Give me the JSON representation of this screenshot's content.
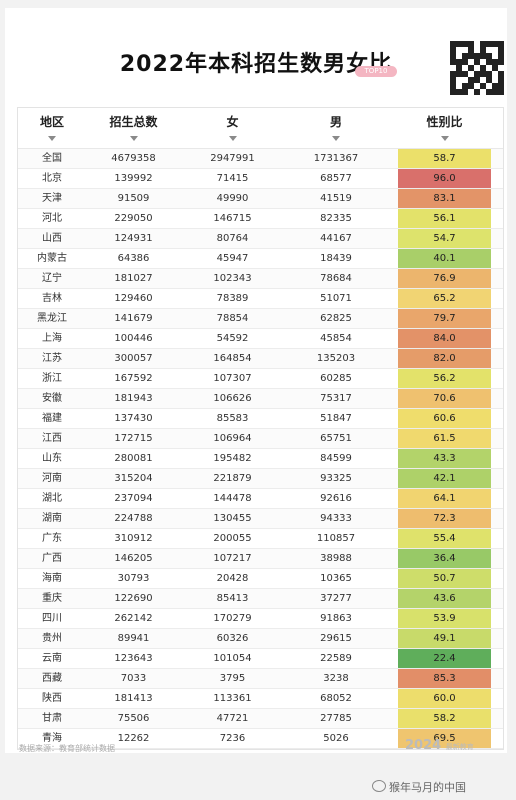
{
  "title": "2022年本科招生数男女比",
  "title_tag": "TOP10",
  "columns": [
    "地区",
    "招生总数",
    "女",
    "男",
    "性别比"
  ],
  "rows": [
    {
      "region": "全国",
      "total": "4679358",
      "female": "2947991",
      "male": "1731367",
      "ratio": "58.7",
      "color": "#ebe06a"
    },
    {
      "region": "北京",
      "total": "139992",
      "female": "71415",
      "male": "68577",
      "ratio": "96.0",
      "color": "#d9706b"
    },
    {
      "region": "天津",
      "total": "91509",
      "female": "49990",
      "male": "41519",
      "ratio": "83.1",
      "color": "#e39468"
    },
    {
      "region": "河北",
      "total": "229050",
      "female": "146715",
      "male": "82335",
      "ratio": "56.1",
      "color": "#e3e26a"
    },
    {
      "region": "山西",
      "total": "124931",
      "female": "80764",
      "male": "44167",
      "ratio": "54.7",
      "color": "#dde36c"
    },
    {
      "region": "内蒙古",
      "total": "64386",
      "female": "45947",
      "male": "18439",
      "ratio": "40.1",
      "color": "#a9cf69"
    },
    {
      "region": "辽宁",
      "total": "181027",
      "female": "102343",
      "male": "78684",
      "ratio": "76.9",
      "color": "#ecb56d"
    },
    {
      "region": "吉林",
      "total": "129460",
      "female": "78389",
      "male": "51071",
      "ratio": "65.2",
      "color": "#f1d473"
    },
    {
      "region": "黑龙江",
      "total": "141679",
      "female": "78854",
      "male": "62825",
      "ratio": "79.7",
      "color": "#e9a66b"
    },
    {
      "region": "上海",
      "total": "100446",
      "female": "54592",
      "male": "45854",
      "ratio": "84.0",
      "color": "#e39268"
    },
    {
      "region": "江苏",
      "total": "300057",
      "female": "164854",
      "male": "135203",
      "ratio": "82.0",
      "color": "#e59c69"
    },
    {
      "region": "浙江",
      "total": "167592",
      "female": "107307",
      "male": "60285",
      "ratio": "56.2",
      "color": "#e3e26a"
    },
    {
      "region": "安徽",
      "total": "181943",
      "female": "106626",
      "male": "75317",
      "ratio": "70.6",
      "color": "#efc16f"
    },
    {
      "region": "福建",
      "total": "137430",
      "female": "85583",
      "male": "51847",
      "ratio": "60.6",
      "color": "#efdd6c"
    },
    {
      "region": "江西",
      "total": "172715",
      "female": "106964",
      "male": "65751",
      "ratio": "61.5",
      "color": "#f0d96e"
    },
    {
      "region": "山东",
      "total": "280081",
      "female": "195482",
      "male": "84599",
      "ratio": "43.3",
      "color": "#b3d36a"
    },
    {
      "region": "河南",
      "total": "315204",
      "female": "221879",
      "male": "93325",
      "ratio": "42.1",
      "color": "#aed169"
    },
    {
      "region": "湖北",
      "total": "237094",
      "female": "144478",
      "male": "92616",
      "ratio": "64.1",
      "color": "#f1d470"
    },
    {
      "region": "湖南",
      "total": "224788",
      "female": "130455",
      "male": "94333",
      "ratio": "72.3",
      "color": "#eebd6e"
    },
    {
      "region": "广东",
      "total": "310912",
      "female": "200055",
      "male": "110857",
      "ratio": "55.4",
      "color": "#dfe26b"
    },
    {
      "region": "广西",
      "total": "146205",
      "female": "107217",
      "male": "38988",
      "ratio": "36.4",
      "color": "#98c967"
    },
    {
      "region": "海南",
      "total": "30793",
      "female": "20428",
      "male": "10365",
      "ratio": "50.7",
      "color": "#cedd6a"
    },
    {
      "region": "重庆",
      "total": "122690",
      "female": "85413",
      "male": "37277",
      "ratio": "43.6",
      "color": "#b4d36a"
    },
    {
      "region": "四川",
      "total": "262142",
      "female": "170279",
      "male": "91863",
      "ratio": "53.9",
      "color": "#d8e16b"
    },
    {
      "region": "贵州",
      "total": "89941",
      "female": "60326",
      "male": "29615",
      "ratio": "49.1",
      "color": "#c8da6a"
    },
    {
      "region": "云南",
      "total": "123643",
      "female": "101054",
      "male": "22589",
      "ratio": "22.4",
      "color": "#5fae5b"
    },
    {
      "region": "西藏",
      "total": "7033",
      "female": "3795",
      "male": "3238",
      "ratio": "85.3",
      "color": "#e28e68"
    },
    {
      "region": "陕西",
      "total": "181413",
      "female": "113361",
      "male": "68052",
      "ratio": "60.0",
      "color": "#eddd6c"
    },
    {
      "region": "甘肃",
      "total": "75506",
      "female": "47721",
      "male": "27785",
      "ratio": "58.2",
      "color": "#e9e06b"
    },
    {
      "region": "青海",
      "total": "12262",
      "female": "7236",
      "male": "5026",
      "ratio": "69.5",
      "color": "#efc56f"
    }
  ],
  "footer_source": "数据来源：教育部统计数据",
  "footer_logo": "2024",
  "footer_logo_text": "最新教育",
  "watermark": "猴年马月的中国",
  "icons": {
    "qr": "qr-code-icon",
    "watermark": "weibo-icon",
    "sort": "sort-arrow-icon"
  }
}
